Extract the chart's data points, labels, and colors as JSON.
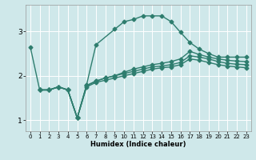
{
  "title": "",
  "xlabel": "Humidex (Indice chaleur)",
  "ylabel": "",
  "background_color": "#cfe8ea",
  "grid_color": "#ffffff",
  "line_color": "#2e7d6e",
  "xlim": [
    -0.5,
    23.5
  ],
  "ylim": [
    0.75,
    3.6
  ],
  "yticks": [
    1,
    2,
    3
  ],
  "xticks": [
    0,
    1,
    2,
    3,
    4,
    5,
    6,
    7,
    8,
    9,
    10,
    11,
    12,
    13,
    14,
    15,
    16,
    17,
    18,
    19,
    20,
    21,
    22,
    23
  ],
  "lines": [
    {
      "x": [
        0,
        1,
        2,
        3,
        4,
        5,
        6,
        7,
        9,
        10,
        11,
        12,
        13,
        14,
        15,
        16,
        17,
        18,
        19,
        20,
        21,
        22,
        23
      ],
      "y": [
        2.65,
        1.68,
        1.68,
        1.75,
        1.68,
        1.05,
        1.8,
        2.7,
        3.05,
        3.22,
        3.27,
        3.35,
        3.35,
        3.35,
        3.22,
        2.98,
        2.75,
        2.6,
        2.5,
        2.42,
        2.42,
        2.42,
        2.42
      ],
      "marker": "D",
      "linewidth": 1.0,
      "markersize": 2.5
    },
    {
      "x": [
        1,
        2,
        3,
        4,
        5,
        6,
        7,
        8,
        9,
        10,
        11,
        12,
        13,
        14,
        15,
        16,
        17,
        18,
        19,
        20,
        21,
        22,
        23
      ],
      "y": [
        1.68,
        1.68,
        1.75,
        1.68,
        1.05,
        1.78,
        1.88,
        1.95,
        2.0,
        2.08,
        2.15,
        2.2,
        2.25,
        2.28,
        2.32,
        2.38,
        2.55,
        2.48,
        2.42,
        2.38,
        2.35,
        2.33,
        2.32
      ],
      "marker": "D",
      "linewidth": 1.0,
      "markersize": 2.5
    },
    {
      "x": [
        1,
        2,
        3,
        4,
        5,
        6,
        7,
        8,
        9,
        10,
        11,
        12,
        13,
        14,
        15,
        16,
        17,
        18,
        19,
        20,
        21,
        22,
        23
      ],
      "y": [
        1.68,
        1.68,
        1.75,
        1.68,
        1.05,
        1.78,
        1.88,
        1.95,
        2.0,
        2.05,
        2.1,
        2.15,
        2.2,
        2.22,
        2.25,
        2.3,
        2.45,
        2.42,
        2.38,
        2.32,
        2.28,
        2.26,
        2.25
      ],
      "marker": "D",
      "linewidth": 1.0,
      "markersize": 2.5
    },
    {
      "x": [
        1,
        2,
        3,
        4,
        5,
        6,
        7,
        8,
        9,
        10,
        11,
        12,
        13,
        14,
        15,
        16,
        17,
        18,
        19,
        20,
        21,
        22,
        23
      ],
      "y": [
        1.68,
        1.68,
        1.75,
        1.68,
        1.05,
        1.75,
        1.85,
        1.9,
        1.95,
        2.0,
        2.05,
        2.1,
        2.15,
        2.18,
        2.2,
        2.25,
        2.38,
        2.35,
        2.3,
        2.25,
        2.22,
        2.2,
        2.18
      ],
      "marker": "D",
      "linewidth": 1.0,
      "markersize": 2.5
    }
  ]
}
